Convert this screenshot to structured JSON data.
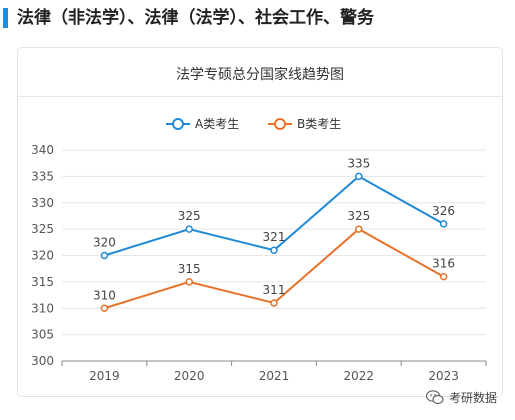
{
  "header": {
    "title": "法律（非法学）、法律（法学）、社会工作、警务",
    "accent_color": "#1d8fe0"
  },
  "chart_data": {
    "type": "line",
    "title": "法学专硕总分国家线趋势图",
    "categories": [
      "2019",
      "2020",
      "2021",
      "2022",
      "2023"
    ],
    "series": [
      {
        "name": "A类考生",
        "color": "#1f8ad8",
        "values": [
          320,
          325,
          321,
          335,
          326
        ]
      },
      {
        "name": "B类考生",
        "color": "#e8722a",
        "values": [
          310,
          315,
          311,
          325,
          316
        ]
      }
    ],
    "ylim": [
      300,
      340
    ],
    "yticks": [
      300,
      305,
      310,
      315,
      320,
      325,
      330,
      335,
      340
    ],
    "grid": true,
    "legend": "top-center",
    "xlabel": "",
    "ylabel": ""
  },
  "watermark": {
    "text": "考研数据",
    "icon": "wechat-icon"
  }
}
